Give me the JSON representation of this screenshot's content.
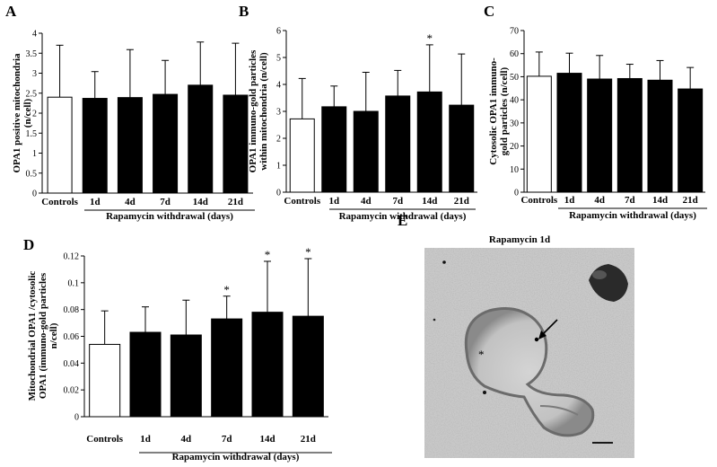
{
  "figure": {
    "micrograph": {
      "letter": "E",
      "title": "Rapamycin 1d",
      "asterisk": "*"
    }
  },
  "chart_data": [
    {
      "type": "bar",
      "panel_letter": "A",
      "ylabel": "OPA1 positive mitochondria (n/cell)",
      "xlabel": "Rapamycin withdrawal (days)",
      "categories": [
        "Controls",
        "1d",
        "4d",
        "7d",
        "14d",
        "21d"
      ],
      "values": [
        2.4,
        2.37,
        2.39,
        2.47,
        2.7,
        2.45
      ],
      "errors": [
        1.3,
        0.67,
        1.2,
        0.85,
        1.08,
        1.3
      ],
      "significance": [
        "",
        "",
        "",
        "",
        "",
        ""
      ],
      "bar_colors": [
        "#ffffff",
        "#000000",
        "#000000",
        "#000000",
        "#000000",
        "#000000"
      ],
      "ylim": [
        0,
        4
      ],
      "yticks": [
        0,
        0.5,
        1,
        1.5,
        2,
        2.5,
        3,
        3.5,
        4
      ],
      "ytick_labels": [
        "0",
        "0.5",
        "1",
        "1.5",
        "2",
        "2.5",
        "3",
        "3.5",
        "4"
      ]
    },
    {
      "type": "bar",
      "panel_letter": "B",
      "ylabel": "OPA1 immuno-gold particles within mitochondria (n/cell)",
      "xlabel": "Rapamycin withdrawal (days)",
      "categories": [
        "Controls",
        "1d",
        "4d",
        "7d",
        "14d",
        "21d"
      ],
      "values": [
        2.72,
        3.17,
        3.0,
        3.57,
        3.72,
        3.23
      ],
      "errors": [
        1.5,
        0.77,
        1.45,
        0.95,
        1.75,
        1.9
      ],
      "significance": [
        "",
        "",
        "",
        "",
        "*",
        ""
      ],
      "bar_colors": [
        "#ffffff",
        "#000000",
        "#000000",
        "#000000",
        "#000000",
        "#000000"
      ],
      "ylim": [
        0,
        6
      ],
      "yticks": [
        0,
        1,
        2,
        3,
        4,
        5,
        6
      ],
      "ytick_labels": [
        "0",
        "1",
        "2",
        "3",
        "4",
        "5",
        "6"
      ]
    },
    {
      "type": "bar",
      "panel_letter": "C",
      "ylabel": "Cytosolic OPA1 immuno-gold particles (n/cell)",
      "xlabel": "Rapamycin withdrawal (days)",
      "categories": [
        "Controls",
        "1d",
        "4d",
        "7d",
        "14d",
        "21d"
      ],
      "values": [
        50.2,
        51.5,
        49.0,
        49.2,
        48.5,
        44.7
      ],
      "errors": [
        10.5,
        8.7,
        10.2,
        6.2,
        8.5,
        9.3
      ],
      "significance": [
        "",
        "",
        "",
        "",
        "",
        ""
      ],
      "bar_colors": [
        "#ffffff",
        "#000000",
        "#000000",
        "#000000",
        "#000000",
        "#000000"
      ],
      "ylim": [
        0,
        70
      ],
      "yticks": [
        0,
        10,
        20,
        30,
        40,
        50,
        60,
        70
      ],
      "ytick_labels": [
        "0",
        "10",
        "20",
        "30",
        "40",
        "50",
        "60",
        "70"
      ]
    },
    {
      "type": "bar",
      "panel_letter": "D",
      "ylabel": "Mitochondrial OPA1 /cytosolic OPA1 (immuno-gold particles n/cell)",
      "xlabel": "Rapamycin withdrawal (days)",
      "categories": [
        "Controls",
        "1d",
        "4d",
        "7d",
        "14d",
        "21d"
      ],
      "values": [
        0.054,
        0.063,
        0.061,
        0.073,
        0.078,
        0.075
      ],
      "errors": [
        0.025,
        0.019,
        0.026,
        0.017,
        0.038,
        0.043
      ],
      "significance": [
        "",
        "",
        "",
        "*",
        "*",
        "*"
      ],
      "bar_colors": [
        "#ffffff",
        "#000000",
        "#000000",
        "#000000",
        "#000000",
        "#000000"
      ],
      "ylim": [
        0,
        0.12
      ],
      "yticks": [
        0,
        0.02,
        0.04,
        0.06,
        0.08,
        0.1,
        0.12
      ],
      "ytick_labels": [
        "0",
        "0.02",
        "0.04",
        "0.06",
        "0.08",
        "0.1",
        "0.12"
      ]
    }
  ]
}
